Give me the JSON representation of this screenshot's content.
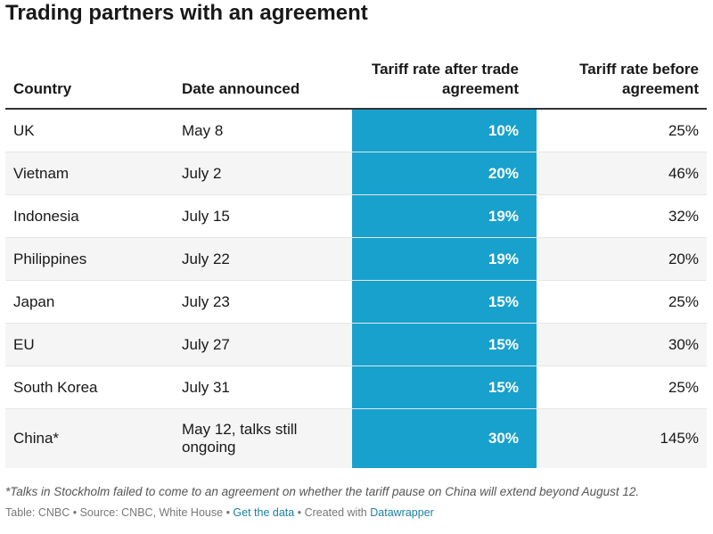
{
  "chart_data": {
    "type": "table",
    "title": "Trading partners with an agreement",
    "columns": [
      "Country",
      "Date announced",
      "Tariff rate after trade agreement",
      "Tariff rate before agreement"
    ],
    "rows": [
      {
        "country": "UK",
        "date": "May 8",
        "after": "10%",
        "before": "25%"
      },
      {
        "country": "Vietnam",
        "date": "July 2",
        "after": "20%",
        "before": "46%"
      },
      {
        "country": "Indonesia",
        "date": "July 15",
        "after": "19%",
        "before": "32%"
      },
      {
        "country": "Philippines",
        "date": "July 22",
        "after": "19%",
        "before": "20%"
      },
      {
        "country": "Japan",
        "date": "July 23",
        "after": "15%",
        "before": "25%"
      },
      {
        "country": "EU",
        "date": "July 27",
        "after": "15%",
        "before": "30%"
      },
      {
        "country": "South Korea",
        "date": "July 31",
        "after": "15%",
        "before": "25%"
      },
      {
        "country": "China*",
        "date": "May 12, talks still ongoing",
        "after": "30%",
        "before": "145%"
      }
    ],
    "highlight_color": "#18a1cd",
    "note": "*Talks in Stockholm failed to come to an agreement on whether the tariff pause on China will extend beyond August 12.",
    "footer": {
      "table_credit": "Table: CNBC",
      "source": "Source: CNBC, White House",
      "get_data": "Get the data",
      "created_with": "Created with",
      "tool": "Datawrapper"
    }
  }
}
